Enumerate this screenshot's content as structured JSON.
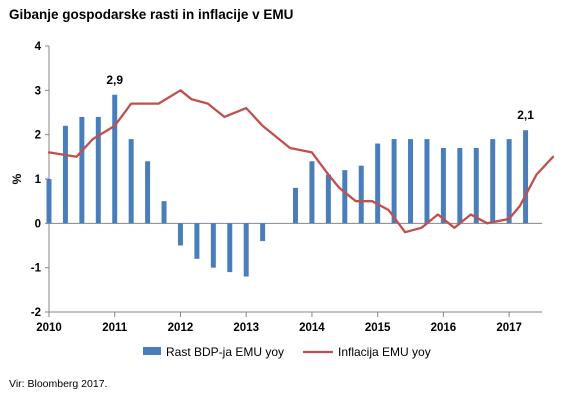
{
  "chart_data": {
    "type": "bar",
    "title": "Gibanje gospodarske rasti in inflacije v EMU",
    "ylabel": "%",
    "ylim": [
      -2,
      4
    ],
    "yticks": [
      "-2",
      "-1",
      "0",
      "1",
      "2",
      "3",
      "4"
    ],
    "xticks": [
      "2010",
      "2011",
      "2012",
      "2013",
      "2014",
      "2015",
      "2016",
      "2017"
    ],
    "grid": false,
    "legend_position": "bottom",
    "colors": {
      "bars": "#4a7ebb",
      "line": "#c0504d"
    },
    "series": [
      {
        "name": "Rast BDP-ja EMU yoy",
        "type": "bar",
        "x": [
          "2010-Q1",
          "2010-Q2",
          "2010-Q3",
          "2010-Q4",
          "2011-Q1",
          "2011-Q2",
          "2011-Q3",
          "2011-Q4",
          "2012-Q1",
          "2012-Q2",
          "2012-Q3",
          "2012-Q4",
          "2013-Q1",
          "2013-Q2",
          "2013-Q3",
          "2013-Q4",
          "2014-Q1",
          "2014-Q2",
          "2014-Q3",
          "2014-Q4",
          "2015-Q1",
          "2015-Q2",
          "2015-Q3",
          "2015-Q4",
          "2016-Q1",
          "2016-Q2",
          "2016-Q3",
          "2016-Q4",
          "2017-Q1",
          "2017-Q2"
        ],
        "values": [
          1.0,
          2.2,
          2.4,
          2.4,
          2.9,
          1.9,
          1.4,
          0.5,
          -0.5,
          -0.8,
          -1.0,
          -1.1,
          -1.2,
          -0.4,
          0.0,
          0.8,
          1.4,
          1.1,
          1.2,
          1.3,
          1.8,
          1.9,
          1.9,
          1.9,
          1.7,
          1.7,
          1.7,
          1.9,
          1.9,
          2.1
        ]
      },
      {
        "name": "Inflacija EMU yoy",
        "type": "line",
        "x": [
          "2010-01",
          "2010-06",
          "2010-09",
          "2011-01",
          "2011-04",
          "2011-09",
          "2012-01",
          "2012-03",
          "2012-06",
          "2012-09",
          "2013-01",
          "2013-04",
          "2013-09",
          "2014-01",
          "2014-04",
          "2014-06",
          "2014-09",
          "2014-12",
          "2015-03",
          "2015-06",
          "2015-09",
          "2015-12",
          "2016-03",
          "2016-06",
          "2016-09",
          "2017-01",
          "2017-03",
          "2017-06",
          "2017-09"
        ],
        "values": [
          1.6,
          1.5,
          1.9,
          2.2,
          2.7,
          2.7,
          3.0,
          2.8,
          2.7,
          2.4,
          2.6,
          2.2,
          1.7,
          1.6,
          1.1,
          0.8,
          0.5,
          0.5,
          0.3,
          -0.2,
          -0.1,
          0.2,
          -0.1,
          0.2,
          0.0,
          0.1,
          0.4,
          1.1,
          1.5
        ]
      }
    ],
    "data_labels": [
      {
        "series": "Rast BDP-ja EMU yoy",
        "x": "2011-Q1",
        "text": "2,9"
      },
      {
        "series": "Rast BDP-ja EMU yoy",
        "x": "2017-Q2",
        "text": "2,1"
      }
    ]
  },
  "source_note": "Vir: Bloomberg 2017."
}
